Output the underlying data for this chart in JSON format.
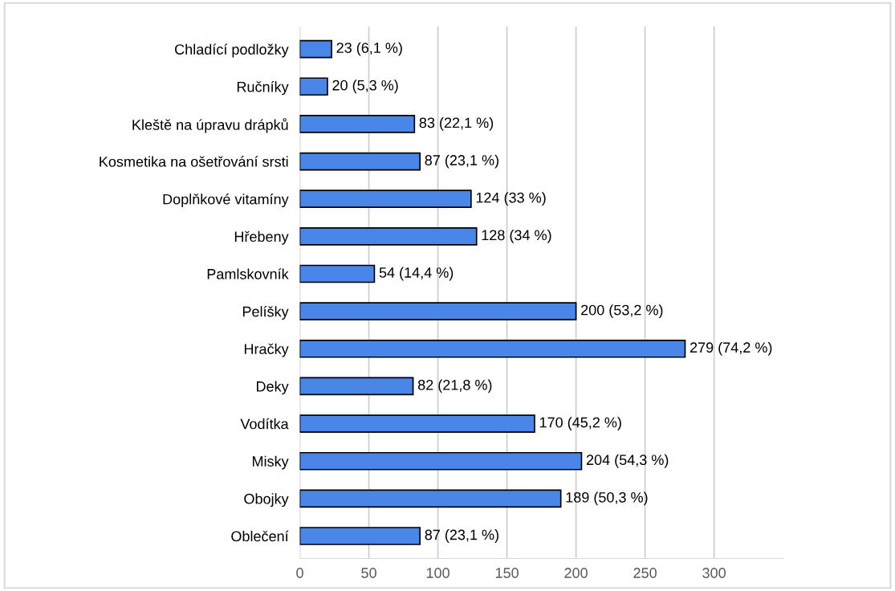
{
  "chart_data": {
    "type": "bar",
    "orientation": "horizontal",
    "categories": [
      "Chladící podložky",
      "Ručníky",
      "Kleště na úpravu drápků",
      "Kosmetika na ošetřování srsti",
      "Doplňkové vitamíny",
      "Hřebeny",
      "Pamlskovník",
      "Pelíšky",
      "Hračky",
      "Deky",
      "Vodítka",
      "Misky",
      "Obojky",
      "Oblečení"
    ],
    "values": [
      23,
      20,
      83,
      87,
      124,
      128,
      54,
      200,
      279,
      82,
      170,
      204,
      189,
      87
    ],
    "value_labels": [
      "23 (6,1 %)",
      "20 (5,3 %)",
      "83 (22,1 %)",
      "87 (23,1 %)",
      "124 (33 %)",
      "128 (34 %)",
      "54 (14,4 %)",
      "200 (53,2 %)",
      "279 (74,2 %)",
      "82 (21,8 %)",
      "170 (45,2 %)",
      "204 (54,3 %)",
      "189 (50,3 %)",
      "87 (23,1 %)"
    ],
    "color": "#4a86e8",
    "xlim": [
      0,
      350
    ],
    "xticks": [
      0,
      50,
      100,
      150,
      200,
      250,
      300
    ],
    "grid": "x"
  }
}
